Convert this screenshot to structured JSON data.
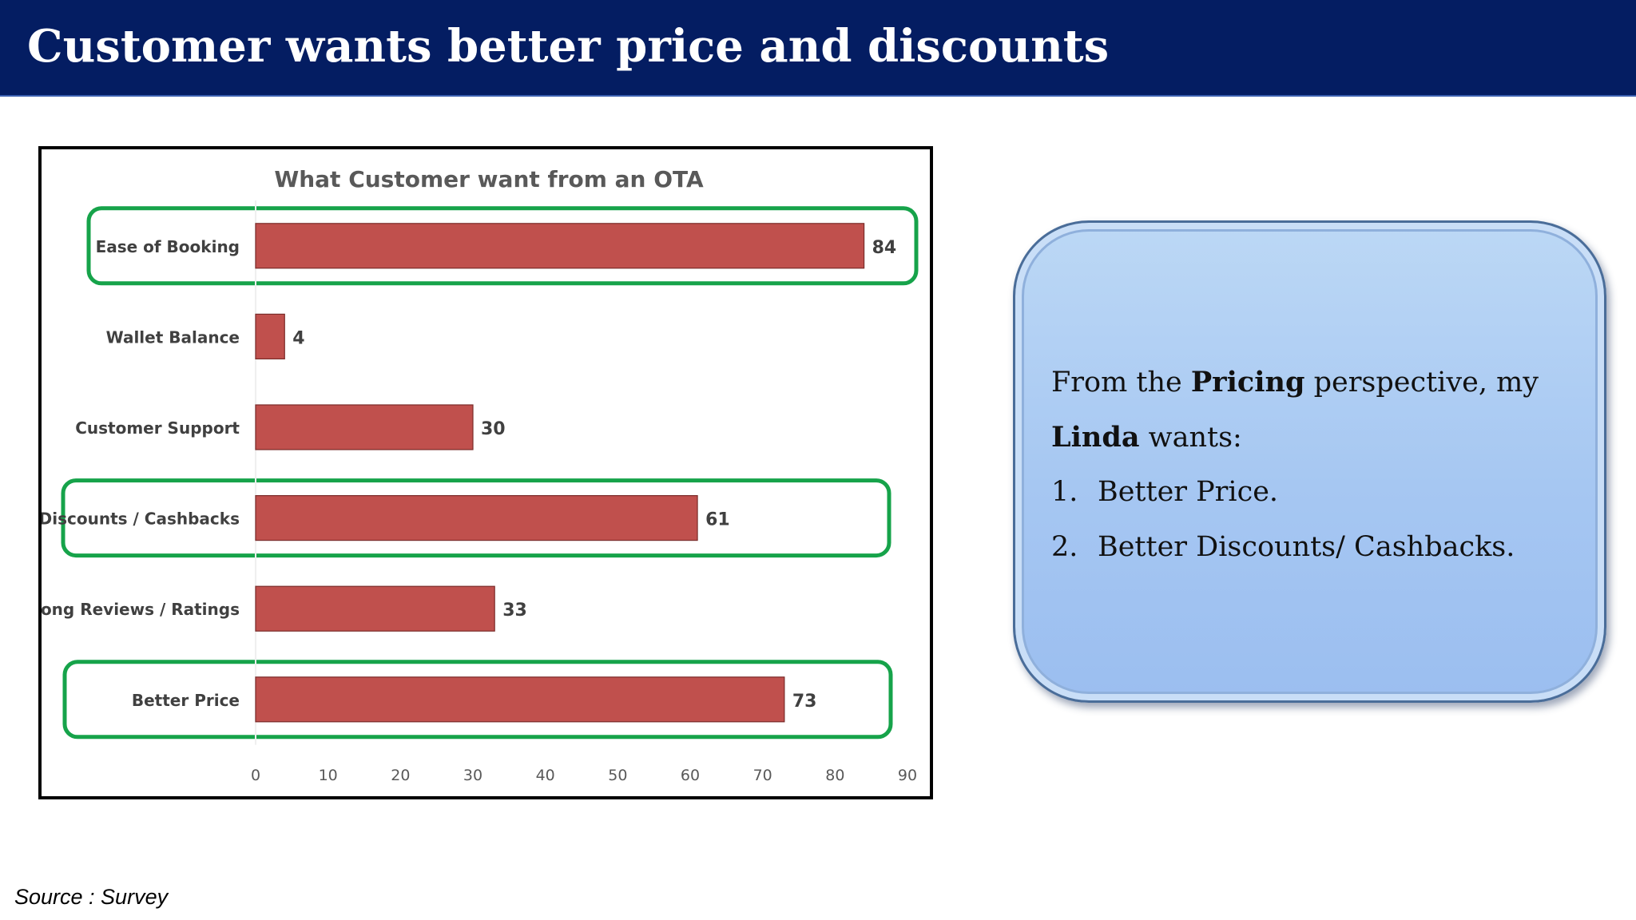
{
  "slide": {
    "title": "Customer wants better price and discounts"
  },
  "chart_data": {
    "type": "bar",
    "orientation": "horizontal",
    "title": "What Customer want from an OTA",
    "categories": [
      "Ease of Booking",
      "Wallet Balance",
      "Customer Support",
      "Discounts / Cashbacks",
      "Strong Reviews / Ratings",
      "Better Price"
    ],
    "values": [
      84,
      4,
      30,
      61,
      33,
      73
    ],
    "xlim": [
      0,
      90
    ],
    "xticks": [
      "0",
      "10",
      "20",
      "30",
      "40",
      "50",
      "60",
      "70",
      "80",
      "90"
    ],
    "bar_color": "#c0504d",
    "highlighted_categories": [
      "Ease of Booking",
      "Discounts / Cashbacks",
      "Better Price"
    ],
    "highlight_color": "#16a34a",
    "grid": false,
    "legend": "none"
  },
  "callout": {
    "intro_1": "From the ",
    "intro_bold_1": "Pricing",
    "intro_2": " perspective, my",
    "intro_bold_2": "Linda",
    "intro_3": " wants:",
    "items": [
      {
        "number": "1.",
        "text": "Better Price."
      },
      {
        "number": "2.",
        "text": "Better Discounts/ Cashbacks."
      }
    ]
  },
  "source": "Source : Survey"
}
